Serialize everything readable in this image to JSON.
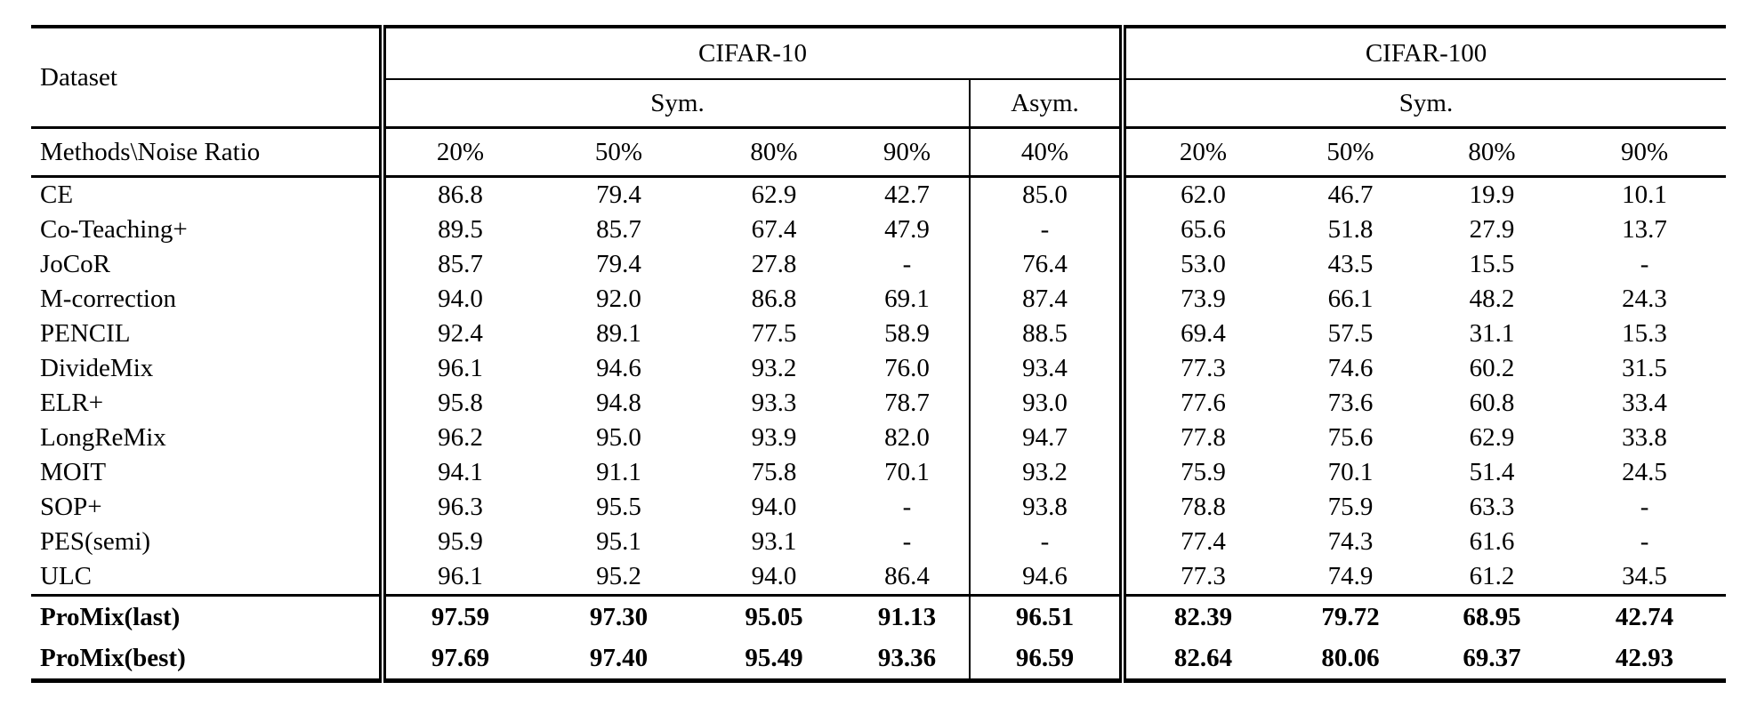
{
  "page": {
    "background_color": "#ffffff",
    "text_color": "#000000",
    "rule_color": "#000000"
  },
  "table": {
    "header": {
      "dataset": "Dataset",
      "cifar10": "CIFAR-10",
      "cifar100": "CIFAR-100",
      "sym10": "Sym.",
      "asym10": "Asym.",
      "sym100": "Sym.",
      "methods_noise": "Methods\\Noise Ratio",
      "noise_ratios": [
        "20%",
        "50%",
        "80%",
        "90%",
        "40%",
        "20%",
        "50%",
        "80%",
        "90%"
      ]
    },
    "rows": [
      {
        "method": "CE",
        "bold": false,
        "values": [
          "86.8",
          "79.4",
          "62.9",
          "42.7",
          "85.0",
          "62.0",
          "46.7",
          "19.9",
          "10.1"
        ]
      },
      {
        "method": "Co-Teaching+",
        "bold": false,
        "values": [
          "89.5",
          "85.7",
          "67.4",
          "47.9",
          "-",
          "65.6",
          "51.8",
          "27.9",
          "13.7"
        ]
      },
      {
        "method": "JoCoR",
        "bold": false,
        "values": [
          "85.7",
          "79.4",
          "27.8",
          "-",
          "76.4",
          "53.0",
          "43.5",
          "15.5",
          "-"
        ]
      },
      {
        "method": "M-correction",
        "bold": false,
        "values": [
          "94.0",
          "92.0",
          "86.8",
          "69.1",
          "87.4",
          "73.9",
          "66.1",
          "48.2",
          "24.3"
        ]
      },
      {
        "method": "PENCIL",
        "bold": false,
        "values": [
          "92.4",
          "89.1",
          "77.5",
          "58.9",
          "88.5",
          "69.4",
          "57.5",
          "31.1",
          "15.3"
        ]
      },
      {
        "method": "DivideMix",
        "bold": false,
        "values": [
          "96.1",
          "94.6",
          "93.2",
          "76.0",
          "93.4",
          "77.3",
          "74.6",
          "60.2",
          "31.5"
        ]
      },
      {
        "method": "ELR+",
        "bold": false,
        "values": [
          "95.8",
          "94.8",
          "93.3",
          "78.7",
          "93.0",
          "77.6",
          "73.6",
          "60.8",
          "33.4"
        ]
      },
      {
        "method": "LongReMix",
        "bold": false,
        "values": [
          "96.2",
          "95.0",
          "93.9",
          "82.0",
          "94.7",
          "77.8",
          "75.6",
          "62.9",
          "33.8"
        ]
      },
      {
        "method": "MOIT",
        "bold": false,
        "values": [
          "94.1",
          "91.1",
          "75.8",
          "70.1",
          "93.2",
          "75.9",
          "70.1",
          "51.4",
          "24.5"
        ]
      },
      {
        "method": "SOP+",
        "bold": false,
        "values": [
          "96.3",
          "95.5",
          "94.0",
          "-",
          "93.8",
          "78.8",
          "75.9",
          "63.3",
          "-"
        ]
      },
      {
        "method": "PES(semi)",
        "bold": false,
        "values": [
          "95.9",
          "95.1",
          "93.1",
          "-",
          "-",
          "77.4",
          "74.3",
          "61.6",
          "-"
        ]
      },
      {
        "method": "ULC",
        "bold": false,
        "values": [
          "96.1",
          "95.2",
          "94.0",
          "86.4",
          "94.6",
          "77.3",
          "74.9",
          "61.2",
          "34.5"
        ]
      },
      {
        "method": "ProMix(last)",
        "bold": true,
        "values": [
          "97.59",
          "97.30",
          "95.05",
          "91.13",
          "96.51",
          "82.39",
          "79.72",
          "68.95",
          "42.74"
        ]
      },
      {
        "method": "ProMix(best)",
        "bold": true,
        "values": [
          "97.69",
          "97.40",
          "95.49",
          "93.36",
          "96.59",
          "82.64",
          "80.06",
          "69.37",
          "42.93"
        ]
      }
    ]
  }
}
